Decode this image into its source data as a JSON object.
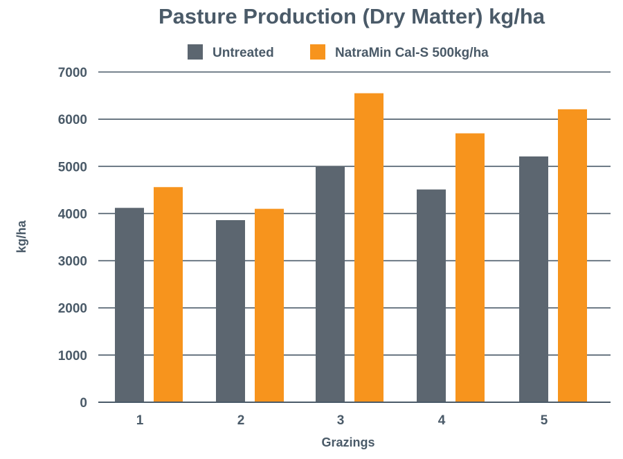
{
  "chart_data": {
    "type": "bar",
    "title": "Pasture Production (Dry Matter) kg/ha",
    "xlabel": "Grazings",
    "ylabel": "kg/ha",
    "categories": [
      "1",
      "2",
      "3",
      "4",
      "5"
    ],
    "series": [
      {
        "name": "Untreated",
        "color": "#5c6670",
        "values": [
          4120,
          3860,
          5010,
          4510,
          5210
        ]
      },
      {
        "name": "NatraMin Cal-S 500kg/ha",
        "color": "#f7941d",
        "values": [
          4560,
          4100,
          6550,
          5700,
          6210
        ]
      }
    ],
    "ylim": [
      0,
      7000
    ],
    "yticks": [
      "0",
      "1000",
      "2000",
      "3000",
      "4000",
      "5000",
      "6000",
      "7000"
    ],
    "grid": true,
    "legend_position": "top-center"
  }
}
